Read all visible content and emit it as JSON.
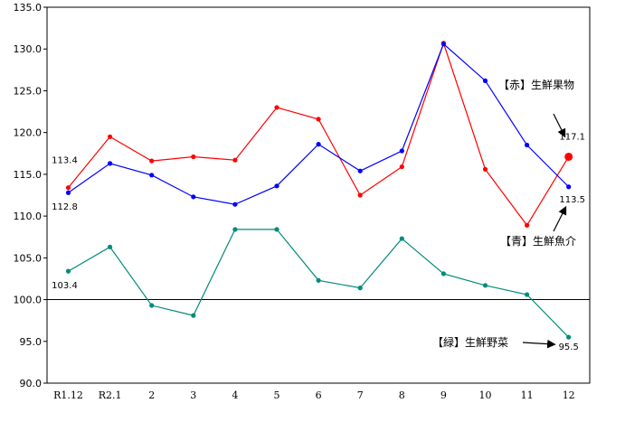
{
  "chart_data": {
    "type": "line",
    "categories": [
      "R1.12",
      "R2.1",
      "2",
      "3",
      "4",
      "5",
      "6",
      "7",
      "8",
      "9",
      "10",
      "11",
      "12"
    ],
    "ylim": [
      90.0,
      135.0
    ],
    "yticks": [
      "90.0",
      "95.0",
      "100.0",
      "105.0",
      "110.0",
      "115.0",
      "120.0",
      "125.0",
      "130.0",
      "135.0"
    ],
    "reference_line": 100.0,
    "grid": false,
    "series": [
      {
        "name": "【赤】生鮮果物",
        "color": "#ff0000",
        "values": [
          113.4,
          119.5,
          116.6,
          117.1,
          116.7,
          123.0,
          121.6,
          112.5,
          115.9,
          130.7,
          115.6,
          108.9,
          117.1
        ]
      },
      {
        "name": "【青】生鮮魚介",
        "color": "#0000ff",
        "values": [
          112.8,
          116.3,
          114.9,
          112.3,
          111.4,
          113.6,
          118.6,
          115.4,
          117.8,
          130.6,
          126.2,
          118.5,
          113.5
        ]
      },
      {
        "name": "【緑】生鮮野菜",
        "color": "#008b7a",
        "values": [
          103.4,
          106.3,
          99.3,
          98.1,
          108.4,
          108.4,
          102.3,
          101.4,
          107.3,
          103.1,
          101.7,
          100.6,
          95.5
        ]
      }
    ],
    "data_labels": [
      {
        "series": 0,
        "index": 0,
        "text": "113.4"
      },
      {
        "series": 1,
        "index": 0,
        "text": "112.8"
      },
      {
        "series": 2,
        "index": 0,
        "text": "103.4"
      },
      {
        "series": 0,
        "index": 12,
        "text": "117.1"
      },
      {
        "series": 1,
        "index": 12,
        "text": "113.5"
      },
      {
        "series": 2,
        "index": 12,
        "text": "95.5"
      }
    ]
  }
}
